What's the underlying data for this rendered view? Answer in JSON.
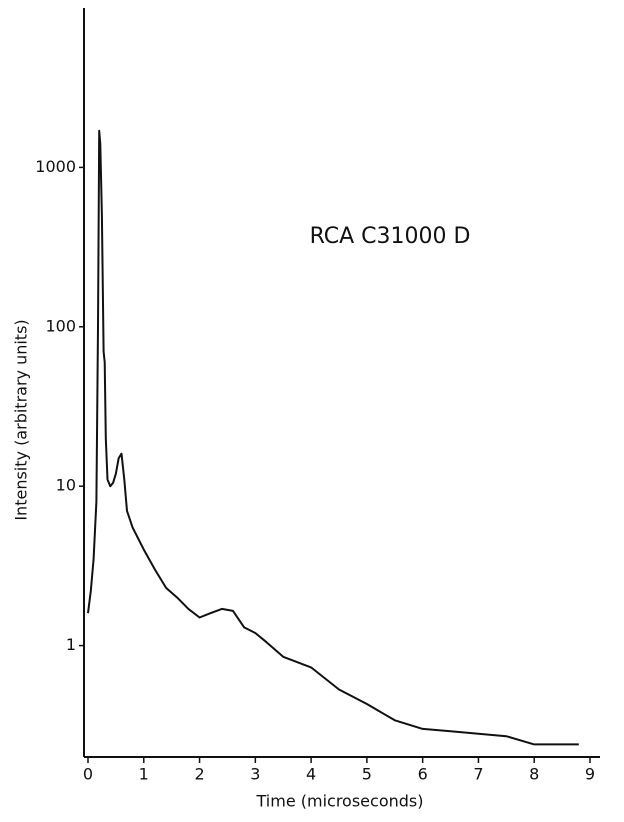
{
  "chart_data": {
    "type": "line",
    "annotation": "RCA  C31000 D",
    "xlabel": "Time (microseconds)",
    "ylabel": "Intensity (arbitrary units)",
    "log_y": true,
    "color": "#111111",
    "xlim": [
      0,
      9
    ],
    "xticks": [
      0,
      1,
      2,
      3,
      4,
      5,
      6,
      7,
      8,
      9
    ],
    "ylim": [
      0.2,
      10000
    ],
    "yticks": [
      1,
      10,
      100,
      1000
    ],
    "x": [
      0,
      0.05,
      0.1,
      0.15,
      0.18,
      0.2,
      0.22,
      0.25,
      0.28,
      0.3,
      0.32,
      0.35,
      0.4,
      0.45,
      0.5,
      0.55,
      0.6,
      0.65,
      0.7,
      0.8,
      1,
      1.2,
      1.4,
      1.6,
      1.8,
      2,
      2.2,
      2.4,
      2.6,
      2.8,
      3,
      3.2,
      3.5,
      4,
      4.5,
      5,
      5.5,
      6,
      6.5,
      7,
      7.5,
      8,
      8.5,
      8.8
    ],
    "values": [
      1.6,
      2.2,
      3.5,
      8,
      100,
      1700,
      1400,
      500,
      70,
      60,
      20,
      11,
      10,
      10.5,
      12,
      15,
      16,
      11,
      7,
      5.5,
      4,
      3,
      2.3,
      2,
      1.7,
      1.5,
      1.6,
      1.7,
      1.65,
      1.3,
      1.2,
      1.05,
      0.85,
      0.73,
      0.53,
      0.43,
      0.34,
      0.3,
      0.29,
      0.28,
      0.27,
      0.24,
      0.24,
      0.24
    ]
  }
}
